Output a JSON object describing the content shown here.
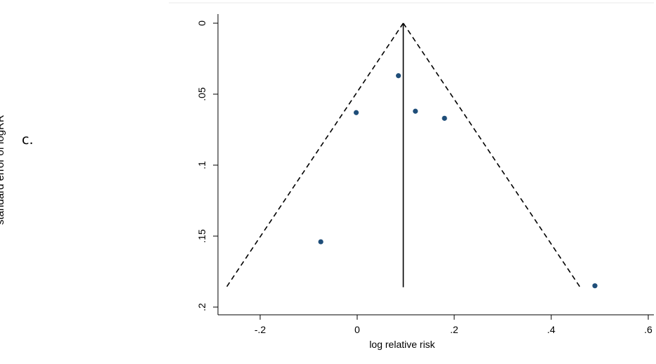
{
  "panel_label": "c.",
  "chart_data": {
    "type": "scatter",
    "subtype": "funnel plot",
    "xlabel": "log relative risk",
    "ylabel": "standard error of logRR",
    "xlim": [
      -0.3,
      0.62
    ],
    "ylim": [
      0.2,
      0
    ],
    "y_reversed": true,
    "xticks": [
      -0.2,
      0,
      0.2,
      0.4,
      0.6
    ],
    "xtick_labels": [
      "-.2",
      "0",
      ".2",
      ".4",
      ".6"
    ],
    "yticks": [
      0,
      0.05,
      0.1,
      0.15,
      0.2
    ],
    "ytick_labels": [
      "0",
      ".05",
      ".1",
      ".15",
      ".2"
    ],
    "points": [
      {
        "x": 0.085,
        "y": 0.037
      },
      {
        "x": -0.002,
        "y": 0.063
      },
      {
        "x": 0.12,
        "y": 0.062
      },
      {
        "x": 0.18,
        "y": 0.067
      },
      {
        "x": -0.075,
        "y": 0.154
      },
      {
        "x": 0.49,
        "y": 0.185
      }
    ],
    "pooled_estimate": 0.095,
    "funnel_max_se": 0.186,
    "funnel_z": 1.96,
    "point_color": "#1f4e79",
    "line_color": "#000000",
    "grid": false
  }
}
